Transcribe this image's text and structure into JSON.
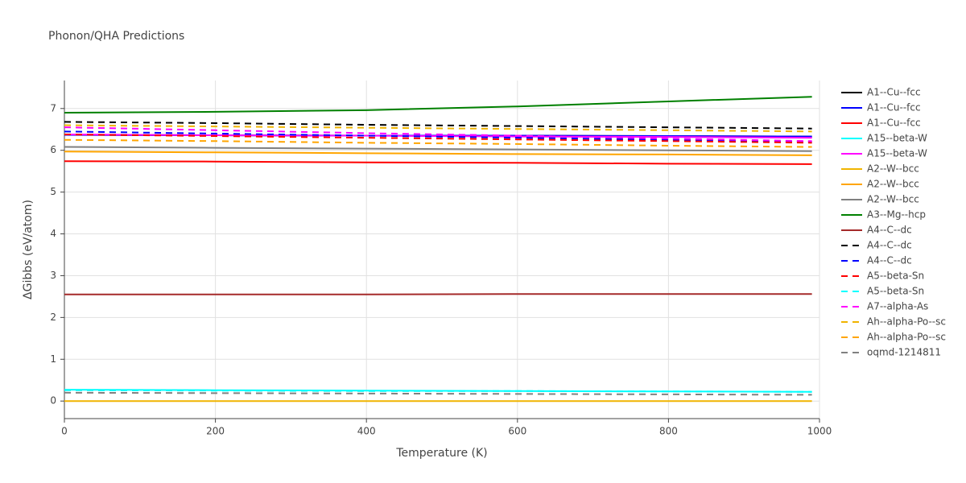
{
  "chart_data": {
    "type": "line",
    "title": "Phonon/QHA Predictions",
    "x_label": "Temperature (K)",
    "y_label": "ΔGibbs (eV/atom)",
    "x": [
      0,
      200,
      400,
      600,
      800,
      990
    ],
    "xlim": [
      0,
      1000
    ],
    "xticks": [
      0,
      200,
      400,
      600,
      800,
      1000
    ],
    "ylim": [
      -0.42,
      7.67
    ],
    "yticks": [
      0,
      1,
      2,
      3,
      4,
      5,
      6,
      7
    ],
    "grid": true,
    "legend": "right",
    "series": [
      {
        "name": "A1--Cu--fcc",
        "color": "#000000",
        "dash": false,
        "values": [
          6.37,
          6.36,
          6.35,
          6.35,
          6.34,
          6.33
        ]
      },
      {
        "name": "A1--Cu--fcc",
        "color": "#0000ff",
        "dash": false,
        "values": [
          6.37,
          6.36,
          6.35,
          6.35,
          6.34,
          6.33
        ]
      },
      {
        "name": "A1--Cu--fcc",
        "color": "#ff0000",
        "dash": false,
        "values": [
          5.74,
          5.73,
          5.71,
          5.7,
          5.68,
          5.67
        ]
      },
      {
        "name": "A15--beta-W",
        "color": "#00ffff",
        "dash": false,
        "values": [
          0.27,
          0.26,
          0.25,
          0.24,
          0.23,
          0.22
        ]
      },
      {
        "name": "A15--beta-W",
        "color": "#ff00ff",
        "dash": false,
        "values": [
          6.38,
          6.36,
          6.35,
          6.33,
          6.32,
          6.3
        ]
      },
      {
        "name": "A2--W--bcc",
        "color": "#f0b400",
        "dash": false,
        "values": [
          0,
          0,
          0,
          0,
          0,
          0
        ]
      },
      {
        "name": "A2--W--bcc",
        "color": "#ffa500",
        "dash": false,
        "values": [
          5.97,
          5.95,
          5.93,
          5.91,
          5.9,
          5.88
        ]
      },
      {
        "name": "A2--W--bcc",
        "color": "#808080",
        "dash": false,
        "values": [
          6.08,
          6.06,
          6.04,
          6.02,
          6.0,
          5.98
        ]
      },
      {
        "name": "A3--Mg--hcp",
        "color": "#008000",
        "dash": false,
        "values": [
          6.9,
          6.92,
          6.96,
          7.05,
          7.17,
          7.28
        ]
      },
      {
        "name": "A4--C--dc",
        "color": "#a52a2a",
        "dash": false,
        "values": [
          2.55,
          2.55,
          2.55,
          2.56,
          2.56,
          2.56
        ]
      },
      {
        "name": "A4--C--dc",
        "color": "#000000",
        "dash": true,
        "values": [
          6.68,
          6.65,
          6.61,
          6.58,
          6.55,
          6.52
        ]
      },
      {
        "name": "A4--C--dc",
        "color": "#0000ff",
        "dash": true,
        "values": [
          6.45,
          6.4,
          6.35,
          6.3,
          6.25,
          6.2
        ]
      },
      {
        "name": "A5--beta-Sn",
        "color": "#ff0000",
        "dash": true,
        "values": [
          6.38,
          6.34,
          6.3,
          6.26,
          6.22,
          6.18
        ]
      },
      {
        "name": "A5--beta-Sn",
        "color": "#00ffff",
        "dash": true,
        "values": [
          0.26,
          0.25,
          0.24,
          0.24,
          0.23,
          0.22
        ]
      },
      {
        "name": "A7--alpha-As",
        "color": "#ff00ff",
        "dash": true,
        "values": [
          6.55,
          6.48,
          6.41,
          6.35,
          6.28,
          6.22
        ]
      },
      {
        "name": "Ah--alpha-Po--sc",
        "color": "#f0b400",
        "dash": true,
        "values": [
          6.6,
          6.57,
          6.54,
          6.51,
          6.48,
          6.45
        ]
      },
      {
        "name": "Ah--alpha-Po--sc",
        "color": "#ffa500",
        "dash": true,
        "values": [
          6.25,
          6.22,
          6.18,
          6.15,
          6.11,
          6.08
        ]
      },
      {
        "name": "oqmd-1214811",
        "color": "#808080",
        "dash": true,
        "values": [
          0.2,
          0.19,
          0.18,
          0.17,
          0.16,
          0.15
        ]
      }
    ]
  }
}
